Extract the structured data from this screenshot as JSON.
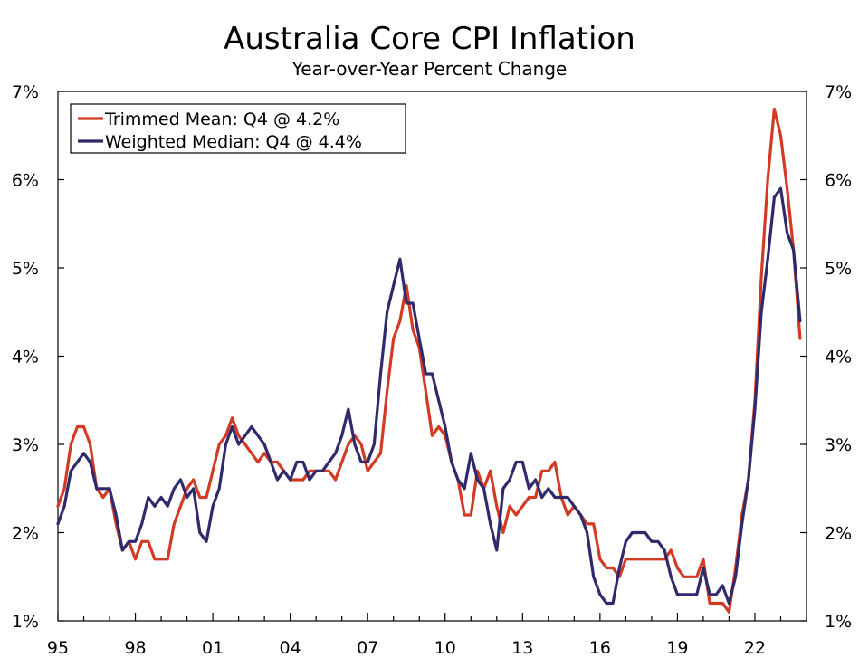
{
  "chart_data": {
    "type": "line",
    "title": "Australia Core CPI Inflation",
    "subtitle": "Year-over-Year Percent Change",
    "xlabel": "",
    "ylabel": "",
    "x_tick_labels": [
      "95",
      "98",
      "01",
      "04",
      "07",
      "10",
      "13",
      "16",
      "19",
      "22"
    ],
    "x_range": [
      1995.0,
      2024.0
    ],
    "y_tick_labels": [
      "1%",
      "2%",
      "3%",
      "4%",
      "5%",
      "6%",
      "7%"
    ],
    "ylim": [
      1,
      7
    ],
    "grid": false,
    "legend_position": "top-left",
    "x_start": 1995.0,
    "x_step": 0.25,
    "series": [
      {
        "name": "Trimmed Mean: Q4 @ 4.2%",
        "color": "#d33a24",
        "values": [
          2.3,
          2.5,
          3.0,
          3.2,
          3.2,
          3.0,
          2.5,
          2.4,
          2.5,
          2.1,
          1.8,
          1.9,
          1.7,
          1.9,
          1.9,
          1.7,
          1.7,
          1.7,
          2.1,
          2.3,
          2.5,
          2.6,
          2.4,
          2.4,
          2.7,
          3.0,
          3.1,
          3.3,
          3.1,
          3.0,
          2.9,
          2.8,
          2.9,
          2.8,
          2.8,
          2.7,
          2.6,
          2.6,
          2.6,
          2.7,
          2.7,
          2.7,
          2.7,
          2.6,
          2.8,
          3.0,
          3.1,
          3.0,
          2.7,
          2.8,
          2.9,
          3.6,
          4.2,
          4.4,
          4.8,
          4.3,
          4.1,
          3.6,
          3.1,
          3.2,
          3.1,
          2.8,
          2.6,
          2.2,
          2.2,
          2.7,
          2.5,
          2.7,
          2.3,
          2.0,
          2.3,
          2.2,
          2.3,
          2.4,
          2.4,
          2.7,
          2.7,
          2.8,
          2.4,
          2.2,
          2.3,
          2.2,
          2.1,
          2.1,
          1.7,
          1.6,
          1.6,
          1.5,
          1.7,
          1.7,
          1.7,
          1.7,
          1.7,
          1.7,
          1.7,
          1.8,
          1.6,
          1.5,
          1.5,
          1.5,
          1.7,
          1.2,
          1.2,
          1.2,
          1.1,
          1.6,
          2.2,
          2.6,
          3.5,
          4.9,
          6.0,
          6.8,
          6.5,
          5.9,
          5.2,
          4.2
        ]
      },
      {
        "name": "Weighted Median: Q4 @ 4.4%",
        "color": "#2e2a6b",
        "values": [
          2.1,
          2.3,
          2.7,
          2.8,
          2.9,
          2.8,
          2.5,
          2.5,
          2.5,
          2.2,
          1.8,
          1.9,
          1.9,
          2.1,
          2.4,
          2.3,
          2.4,
          2.3,
          2.5,
          2.6,
          2.4,
          2.5,
          2.0,
          1.9,
          2.3,
          2.5,
          3.0,
          3.2,
          3.0,
          3.1,
          3.2,
          3.1,
          3.0,
          2.8,
          2.6,
          2.7,
          2.6,
          2.8,
          2.8,
          2.6,
          2.7,
          2.7,
          2.8,
          2.9,
          3.1,
          3.4,
          3.0,
          2.8,
          2.8,
          3.0,
          3.8,
          4.5,
          4.8,
          5.1,
          4.6,
          4.6,
          4.2,
          3.8,
          3.8,
          3.5,
          3.2,
          2.8,
          2.6,
          2.5,
          2.9,
          2.6,
          2.5,
          2.1,
          1.8,
          2.5,
          2.6,
          2.8,
          2.8,
          2.5,
          2.6,
          2.4,
          2.5,
          2.4,
          2.4,
          2.4,
          2.3,
          2.2,
          2.0,
          1.5,
          1.3,
          1.2,
          1.2,
          1.6,
          1.9,
          2.0,
          2.0,
          2.0,
          1.9,
          1.9,
          1.8,
          1.5,
          1.3,
          1.3,
          1.3,
          1.3,
          1.6,
          1.3,
          1.3,
          1.4,
          1.2,
          1.5,
          2.1,
          2.6,
          3.4,
          4.5,
          5.1,
          5.8,
          5.9,
          5.4,
          5.2,
          4.4
        ]
      }
    ]
  }
}
